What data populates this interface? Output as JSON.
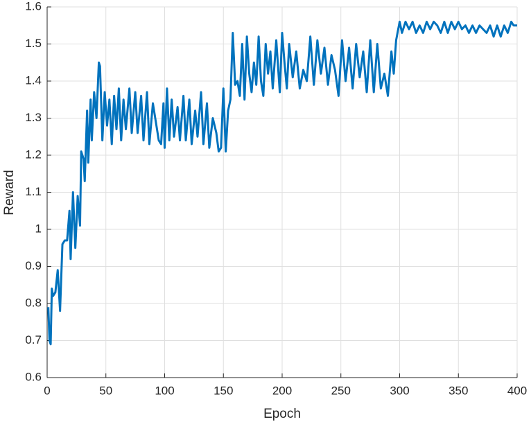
{
  "chart_data": {
    "type": "line",
    "xlabel": "Epoch",
    "ylabel": "Reward",
    "x": [
      1,
      2,
      3,
      4,
      5,
      7,
      9,
      11,
      13,
      15,
      17,
      19,
      20,
      22,
      24,
      26,
      28,
      29,
      31,
      32,
      34,
      35,
      37,
      38,
      40,
      42,
      44,
      45,
      47,
      49,
      51,
      53,
      55,
      57,
      59,
      61,
      63,
      65,
      67,
      70,
      72,
      75,
      77,
      80,
      82,
      85,
      87,
      90,
      93,
      95,
      97,
      99,
      100,
      102,
      104,
      106,
      108,
      111,
      113,
      116,
      118,
      121,
      123,
      126,
      128,
      131,
      133,
      136,
      138,
      141,
      144,
      146,
      148,
      150,
      152,
      154,
      156,
      158,
      160,
      162,
      164,
      166,
      168,
      170,
      172,
      174,
      176,
      178,
      180,
      182,
      184,
      186,
      188,
      190,
      192,
      195,
      198,
      200,
      202,
      204,
      206,
      209,
      212,
      215,
      218,
      221,
      224,
      227,
      230,
      233,
      236,
      239,
      242,
      245,
      248,
      251,
      254,
      257,
      260,
      263,
      266,
      269,
      272,
      275,
      278,
      281,
      284,
      287,
      290,
      293,
      295,
      297,
      300,
      302,
      305,
      308,
      311,
      314,
      317,
      320,
      323,
      326,
      329,
      332,
      335,
      338,
      341,
      344,
      347,
      350,
      353,
      356,
      359,
      362,
      365,
      368,
      371,
      374,
      377,
      380,
      383,
      386,
      389,
      392,
      395,
      397,
      399,
      400
    ],
    "series": [
      {
        "color": "#0072bd",
        "values": [
          0.79,
          0.7,
          0.69,
          0.84,
          0.82,
          0.83,
          0.89,
          0.78,
          0.96,
          0.97,
          0.97,
          1.05,
          0.92,
          1.1,
          0.95,
          1.09,
          1.01,
          1.21,
          1.19,
          1.13,
          1.32,
          1.18,
          1.35,
          1.24,
          1.37,
          1.3,
          1.45,
          1.44,
          1.24,
          1.37,
          1.28,
          1.35,
          1.23,
          1.36,
          1.27,
          1.38,
          1.24,
          1.35,
          1.27,
          1.38,
          1.26,
          1.37,
          1.26,
          1.36,
          1.24,
          1.37,
          1.23,
          1.34,
          1.28,
          1.24,
          1.23,
          1.34,
          1.22,
          1.38,
          1.24,
          1.35,
          1.25,
          1.33,
          1.24,
          1.36,
          1.24,
          1.35,
          1.23,
          1.32,
          1.25,
          1.37,
          1.23,
          1.34,
          1.22,
          1.3,
          1.26,
          1.21,
          1.22,
          1.38,
          1.21,
          1.32,
          1.35,
          1.53,
          1.39,
          1.4,
          1.36,
          1.5,
          1.35,
          1.52,
          1.42,
          1.37,
          1.45,
          1.39,
          1.52,
          1.4,
          1.36,
          1.5,
          1.42,
          1.48,
          1.38,
          1.51,
          1.37,
          1.53,
          1.45,
          1.38,
          1.5,
          1.41,
          1.48,
          1.38,
          1.43,
          1.4,
          1.52,
          1.39,
          1.51,
          1.42,
          1.49,
          1.39,
          1.47,
          1.43,
          1.36,
          1.51,
          1.4,
          1.49,
          1.38,
          1.5,
          1.41,
          1.48,
          1.37,
          1.51,
          1.37,
          1.5,
          1.38,
          1.42,
          1.36,
          1.48,
          1.42,
          1.51,
          1.56,
          1.53,
          1.56,
          1.54,
          1.56,
          1.53,
          1.55,
          1.53,
          1.56,
          1.54,
          1.56,
          1.55,
          1.53,
          1.56,
          1.53,
          1.56,
          1.54,
          1.56,
          1.54,
          1.55,
          1.53,
          1.55,
          1.53,
          1.55,
          1.54,
          1.53,
          1.55,
          1.52,
          1.55,
          1.52,
          1.55,
          1.53,
          1.56,
          1.55,
          1.55,
          1.55
        ]
      }
    ],
    "xlim": [
      0,
      400
    ],
    "xticks": [
      0,
      50,
      100,
      150,
      200,
      250,
      300,
      350,
      400
    ],
    "ylim": [
      0.6,
      1.6
    ],
    "yticks": [
      0.6,
      0.7,
      0.8,
      0.9,
      1,
      1.1,
      1.2,
      1.3,
      1.4,
      1.5,
      1.6
    ],
    "grid": true
  }
}
